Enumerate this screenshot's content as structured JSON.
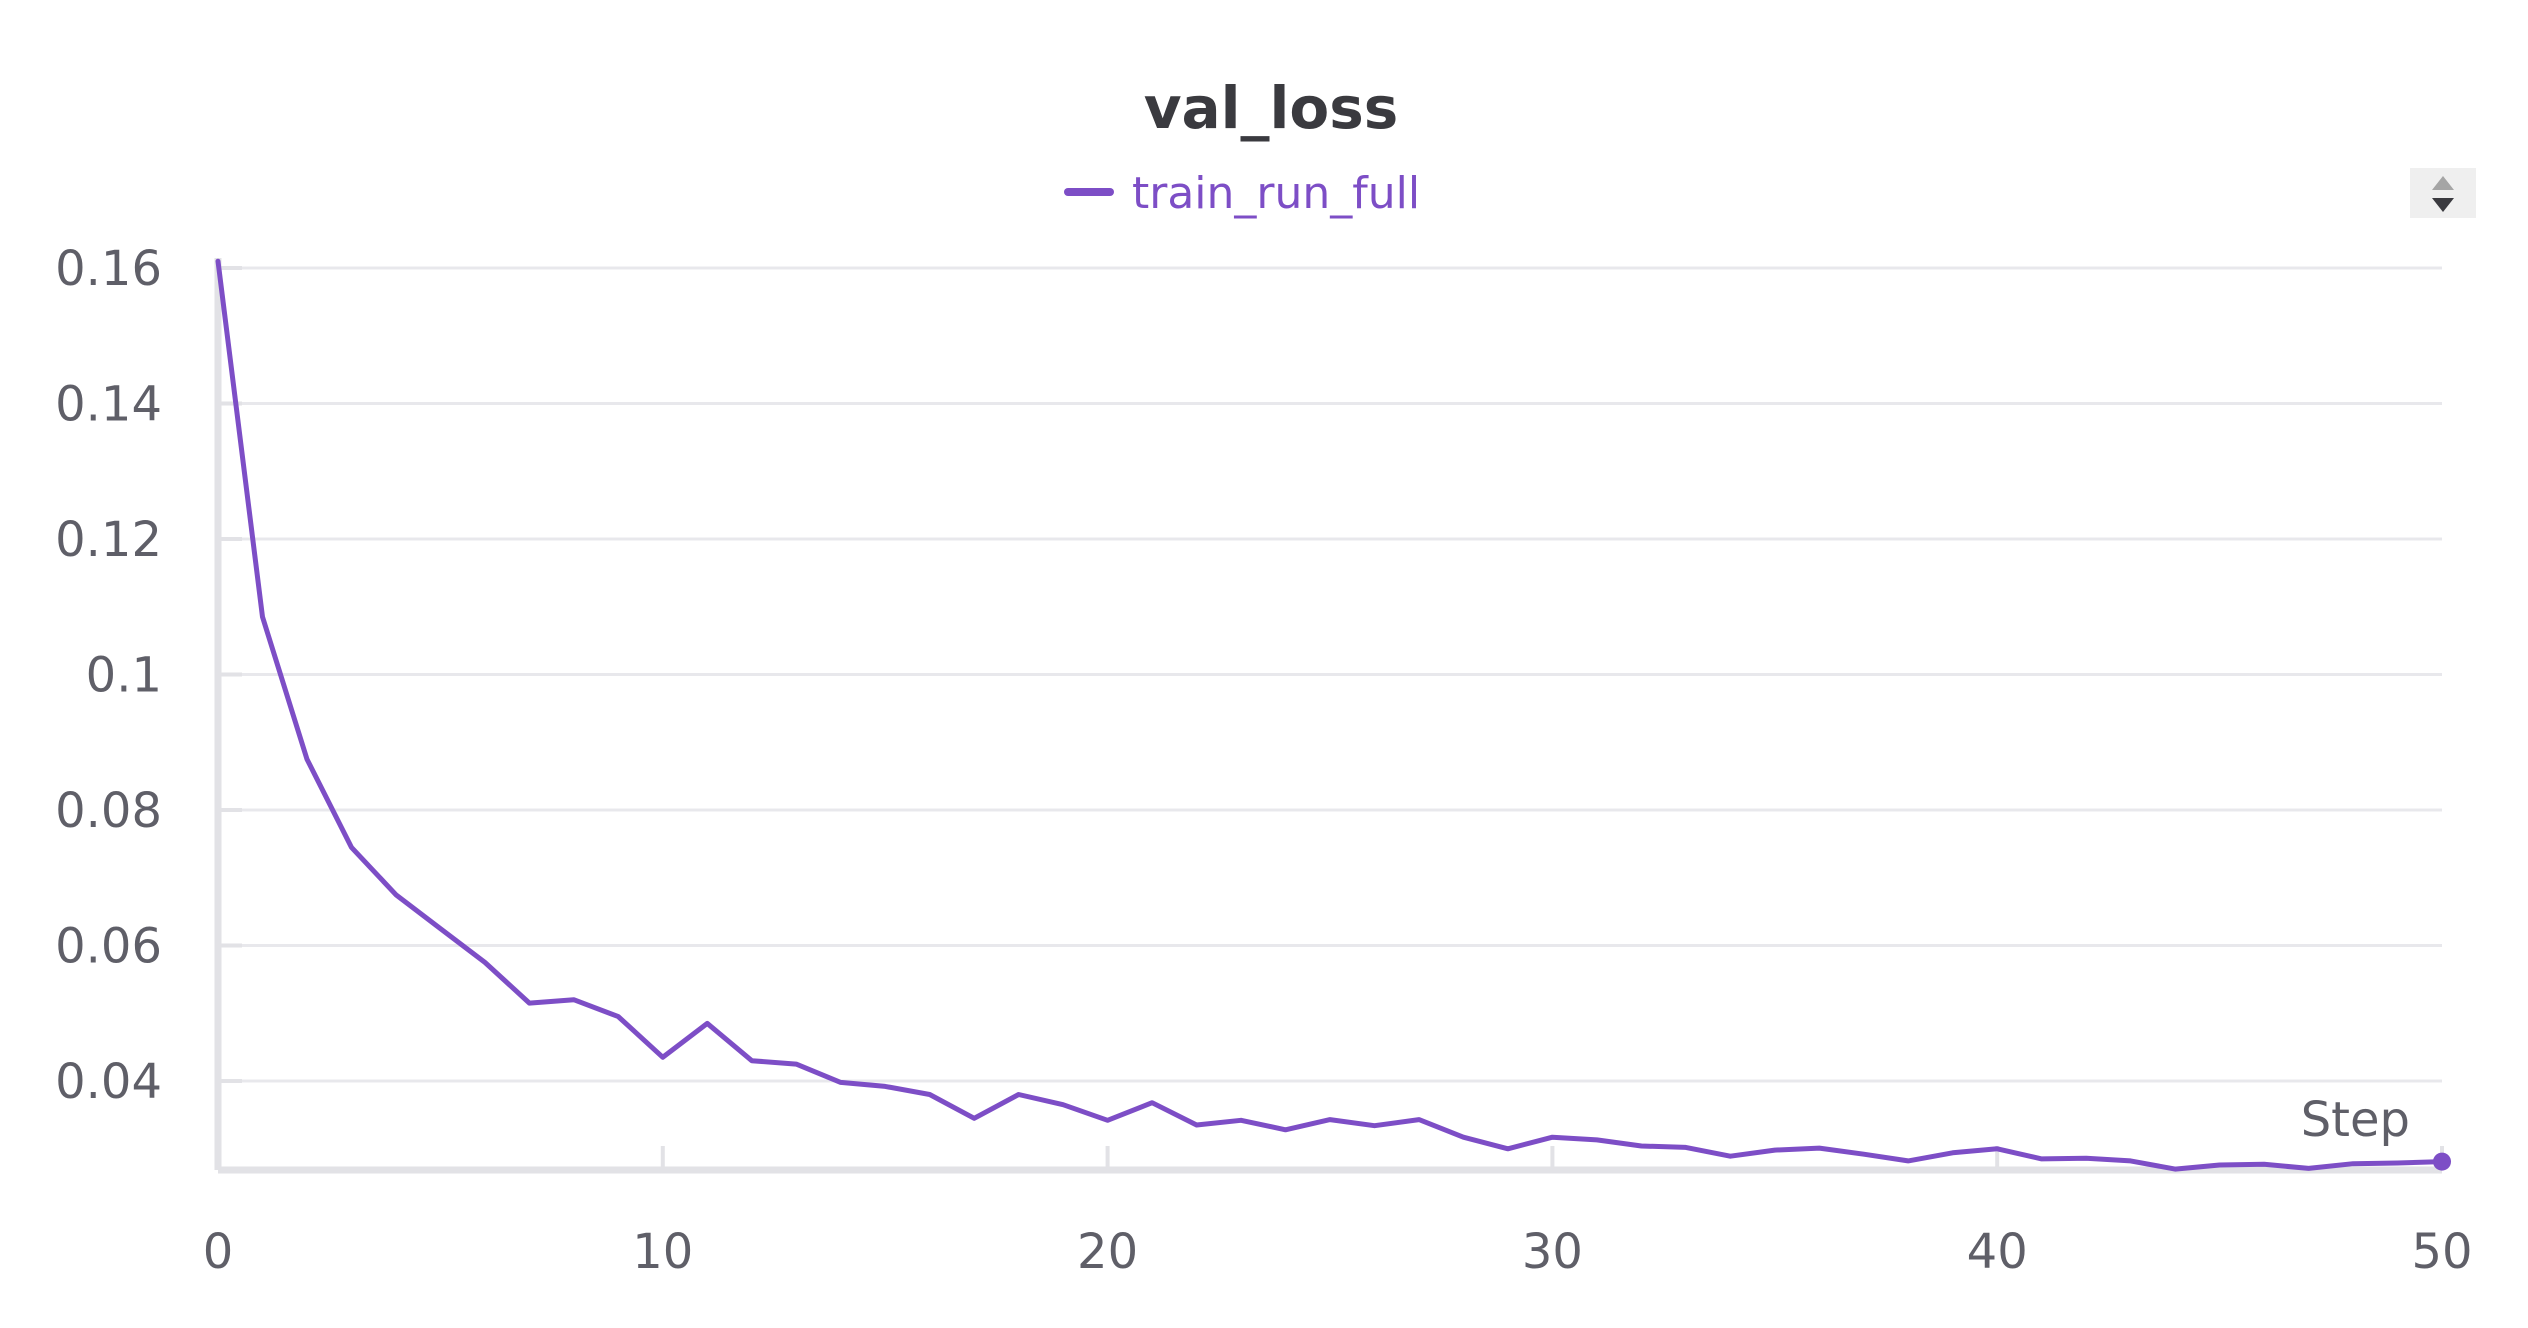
{
  "chart_data": {
    "type": "line",
    "title": "val_loss",
    "xlabel": "Step",
    "ylabel": "",
    "xlim": [
      0,
      50
    ],
    "ylim": [
      0.027,
      0.162
    ],
    "x_ticks": [
      0,
      10,
      20,
      30,
      40,
      50
    ],
    "x_tick_labels": [
      "0",
      "10",
      "20",
      "30",
      "40",
      "50"
    ],
    "y_ticks": [
      0.04,
      0.06,
      0.08,
      0.1,
      0.12,
      0.14,
      0.16
    ],
    "y_tick_labels": [
      "0.04",
      "0.06",
      "0.08",
      "0.1",
      "0.12",
      "0.14",
      "0.16"
    ],
    "grid": true,
    "legend": {
      "position": "top-center"
    },
    "series": [
      {
        "name": "train_run_full",
        "color": "#7d4ec6",
        "x": [
          0,
          1,
          2,
          3,
          4,
          5,
          6,
          7,
          8,
          9,
          10,
          11,
          12,
          13,
          14,
          15,
          16,
          17,
          18,
          19,
          20,
          21,
          22,
          23,
          24,
          25,
          26,
          27,
          28,
          29,
          30,
          31,
          32,
          33,
          34,
          35,
          36,
          37,
          38,
          39,
          40,
          41,
          42,
          43,
          44,
          45,
          46,
          47,
          48,
          49,
          50
        ],
        "y": [
          0.161,
          0.1085,
          0.0875,
          0.0745,
          0.0675,
          0.0625,
          0.0575,
          0.0515,
          0.052,
          0.0495,
          0.0435,
          0.0485,
          0.043,
          0.0425,
          0.0398,
          0.0392,
          0.038,
          0.0345,
          0.038,
          0.0365,
          0.0342,
          0.0368,
          0.0335,
          0.0342,
          0.0328,
          0.0343,
          0.0334,
          0.0343,
          0.0317,
          0.03,
          0.0317,
          0.0313,
          0.0304,
          0.0302,
          0.0289,
          0.0298,
          0.0301,
          0.0292,
          0.0282,
          0.0294,
          0.03,
          0.0285,
          0.0286,
          0.0282,
          0.027,
          0.0276,
          0.0277,
          0.0271,
          0.0278,
          0.0279,
          0.0281
        ]
      }
    ]
  },
  "controls": {
    "sort_toggle_icon": "sort-up-down-icon"
  }
}
